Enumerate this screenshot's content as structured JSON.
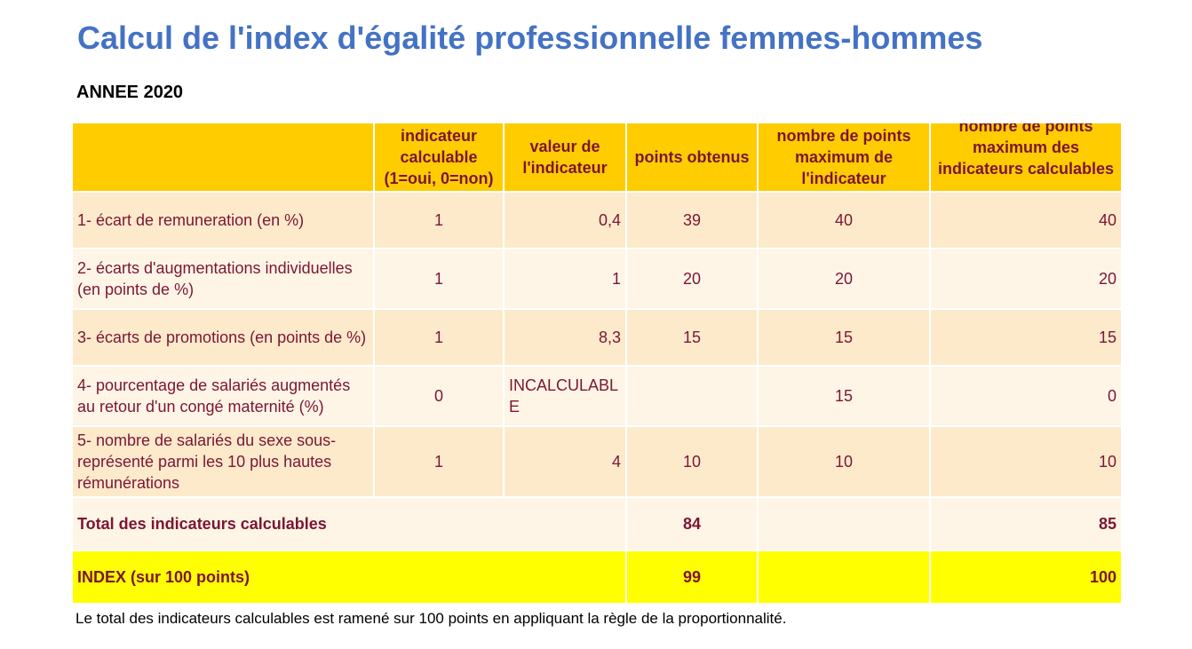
{
  "page": {
    "title": "Calcul de l'index d'égalité professionnelle femmes-hommes",
    "year_label": "ANNEE 2020",
    "footnote": "Le total des indicateurs calculables est ramené sur 100 points en appliquant la règle de la proportionnalité."
  },
  "table": {
    "headers": [
      "",
      "indicateur calculable (1=oui, 0=non)",
      "valeur de l'indicateur",
      "points obtenus",
      "nombre de points maximum de l'indicateur",
      "nombre de points maximum des indicateurs calculables"
    ],
    "rows": [
      {
        "label": "1- écart de remuneration (en %)",
        "calculable": "1",
        "valeur": "0,4",
        "points": "39",
        "max": "40",
        "max_calc": "40"
      },
      {
        "label": "2- écarts d'augmentations individuelles (en points de %)",
        "calculable": "1",
        "valeur": "1",
        "points": "20",
        "max": "20",
        "max_calc": "20"
      },
      {
        "label": "3- écarts de promotions (en points de %)",
        "calculable": "1",
        "valeur": "8,3",
        "points": "15",
        "max": "15",
        "max_calc": "15"
      },
      {
        "label": "4- pourcentage de salariés augmentés au retour d'un congé maternité (%)",
        "calculable": "0",
        "valeur": "INCALCULABLE",
        "points": "",
        "max": "15",
        "max_calc": "0"
      },
      {
        "label": "5- nombre de salariés du sexe sous-représenté parmi les 10 plus hautes rémunérations",
        "calculable": "1",
        "valeur": "4",
        "points": "10",
        "max": "10",
        "max_calc": "10"
      }
    ],
    "total": {
      "label": "Total des indicateurs calculables",
      "points": "84",
      "max_calc": "85"
    },
    "index": {
      "label": "INDEX (sur 100 points)",
      "points": "99",
      "max_calc": "100"
    }
  },
  "colors": {
    "title": "#4472C4",
    "header_bg": "#FFCC00",
    "row_dark": "#FDEACB",
    "row_light": "#FEF5E6",
    "index_bg": "#FFFF00",
    "text": "#7B1535"
  }
}
